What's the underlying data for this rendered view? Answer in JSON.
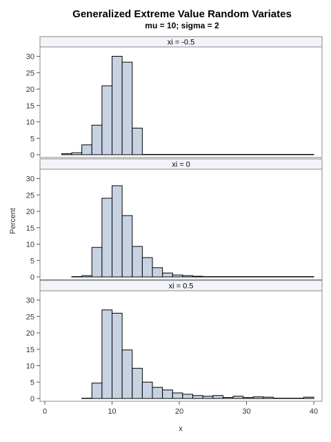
{
  "chart_data": {
    "type": "bar",
    "title": "Generalized Extreme Value Random Variates",
    "subtitle": "mu = 10; sigma = 2",
    "xlabel": "x",
    "ylabel": "Percent",
    "xlim": [
      0,
      40
    ],
    "ylim": [
      0,
      32
    ],
    "x_ticks": [
      0,
      10,
      20,
      30,
      40
    ],
    "y_ticks": [
      0,
      5,
      10,
      15,
      20,
      25,
      30
    ],
    "bin_width": 1.5,
    "bin_start": 2.5,
    "colors": {
      "bar_fill": "#c7d3e3",
      "bar_stroke": "#000000",
      "header_fill": "#f2f4fa"
    },
    "panels": [
      {
        "label": "xi = -0.5",
        "values": [
          0.3,
          0.6,
          3.0,
          9.0,
          21.0,
          30.0,
          28.2,
          8.1,
          0.1,
          0.1,
          0.1,
          0.1,
          0.1,
          0.1,
          0.1,
          0.1,
          0.1,
          0.1,
          0.1,
          0.1,
          0.1,
          0.1,
          0.1,
          0.1,
          0.1
        ]
      },
      {
        "label": "xi = 0",
        "values": [
          0.0,
          0.1,
          0.4,
          9.0,
          24.0,
          27.8,
          18.7,
          9.3,
          5.9,
          2.8,
          1.2,
          0.6,
          0.4,
          0.2,
          0.1,
          0.1,
          0.1,
          0.1,
          0.1,
          0.1,
          0.1,
          0.1,
          0.1,
          0.1,
          0.1
        ]
      },
      {
        "label": "xi = 0.5",
        "values": [
          0.0,
          0.0,
          0.1,
          4.7,
          27.0,
          26.0,
          14.8,
          9.2,
          5.0,
          3.4,
          2.6,
          1.7,
          1.3,
          0.9,
          0.7,
          0.9,
          0.3,
          0.7,
          0.3,
          0.5,
          0.4,
          0.1,
          0.1,
          0.1,
          0.4
        ]
      }
    ]
  }
}
